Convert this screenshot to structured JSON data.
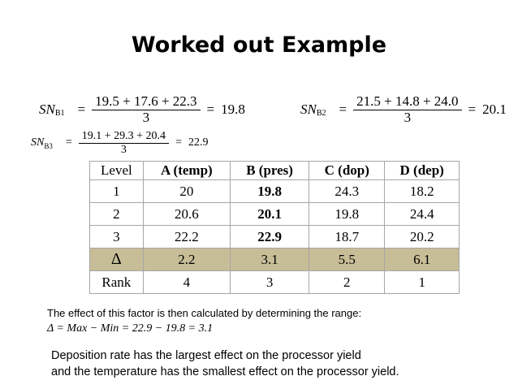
{
  "title": "Worked out Example",
  "equations": {
    "b1": {
      "lhs": "SN",
      "sub": "B1",
      "numerator": "19.5 + 17.6 + 22.3",
      "denominator": "3",
      "result": "19.8"
    },
    "b2": {
      "lhs": "SN",
      "sub": "B2",
      "numerator": "21.5 + 14.8 + 24.0",
      "denominator": "3",
      "result": "20.1"
    },
    "b3": {
      "lhs": "SN",
      "sub": "B3",
      "numerator": "19.1 + 29.3 + 20.4",
      "denominator": "3",
      "result": "22.9"
    }
  },
  "table": {
    "headers": [
      "Level",
      "A (temp)",
      "B (pres)",
      "C (dop)",
      "D (dep)"
    ],
    "rows": [
      [
        "1",
        "20",
        "19.8",
        "24.3",
        "18.2"
      ],
      [
        "2",
        "20.6",
        "20.1",
        "19.8",
        "24.4"
      ],
      [
        "3",
        "22.2",
        "22.9",
        "18.7",
        "20.2"
      ],
      [
        "Δ",
        "2.2",
        "3.1",
        "5.5",
        "6.1"
      ],
      [
        "Rank",
        "4",
        "3",
        "2",
        "1"
      ]
    ],
    "highlight_color": "#c7bd97"
  },
  "note": "The effect of this factor is then calculated by determining the range:",
  "range_eq": "Δ = Max − Min = 22.9 − 19.8 = 3.1",
  "conclusion": {
    "line1": "Deposition rate has the largest effect on the processor yield",
    "line2": "and the temperature has the smallest effect on the processor yield."
  }
}
